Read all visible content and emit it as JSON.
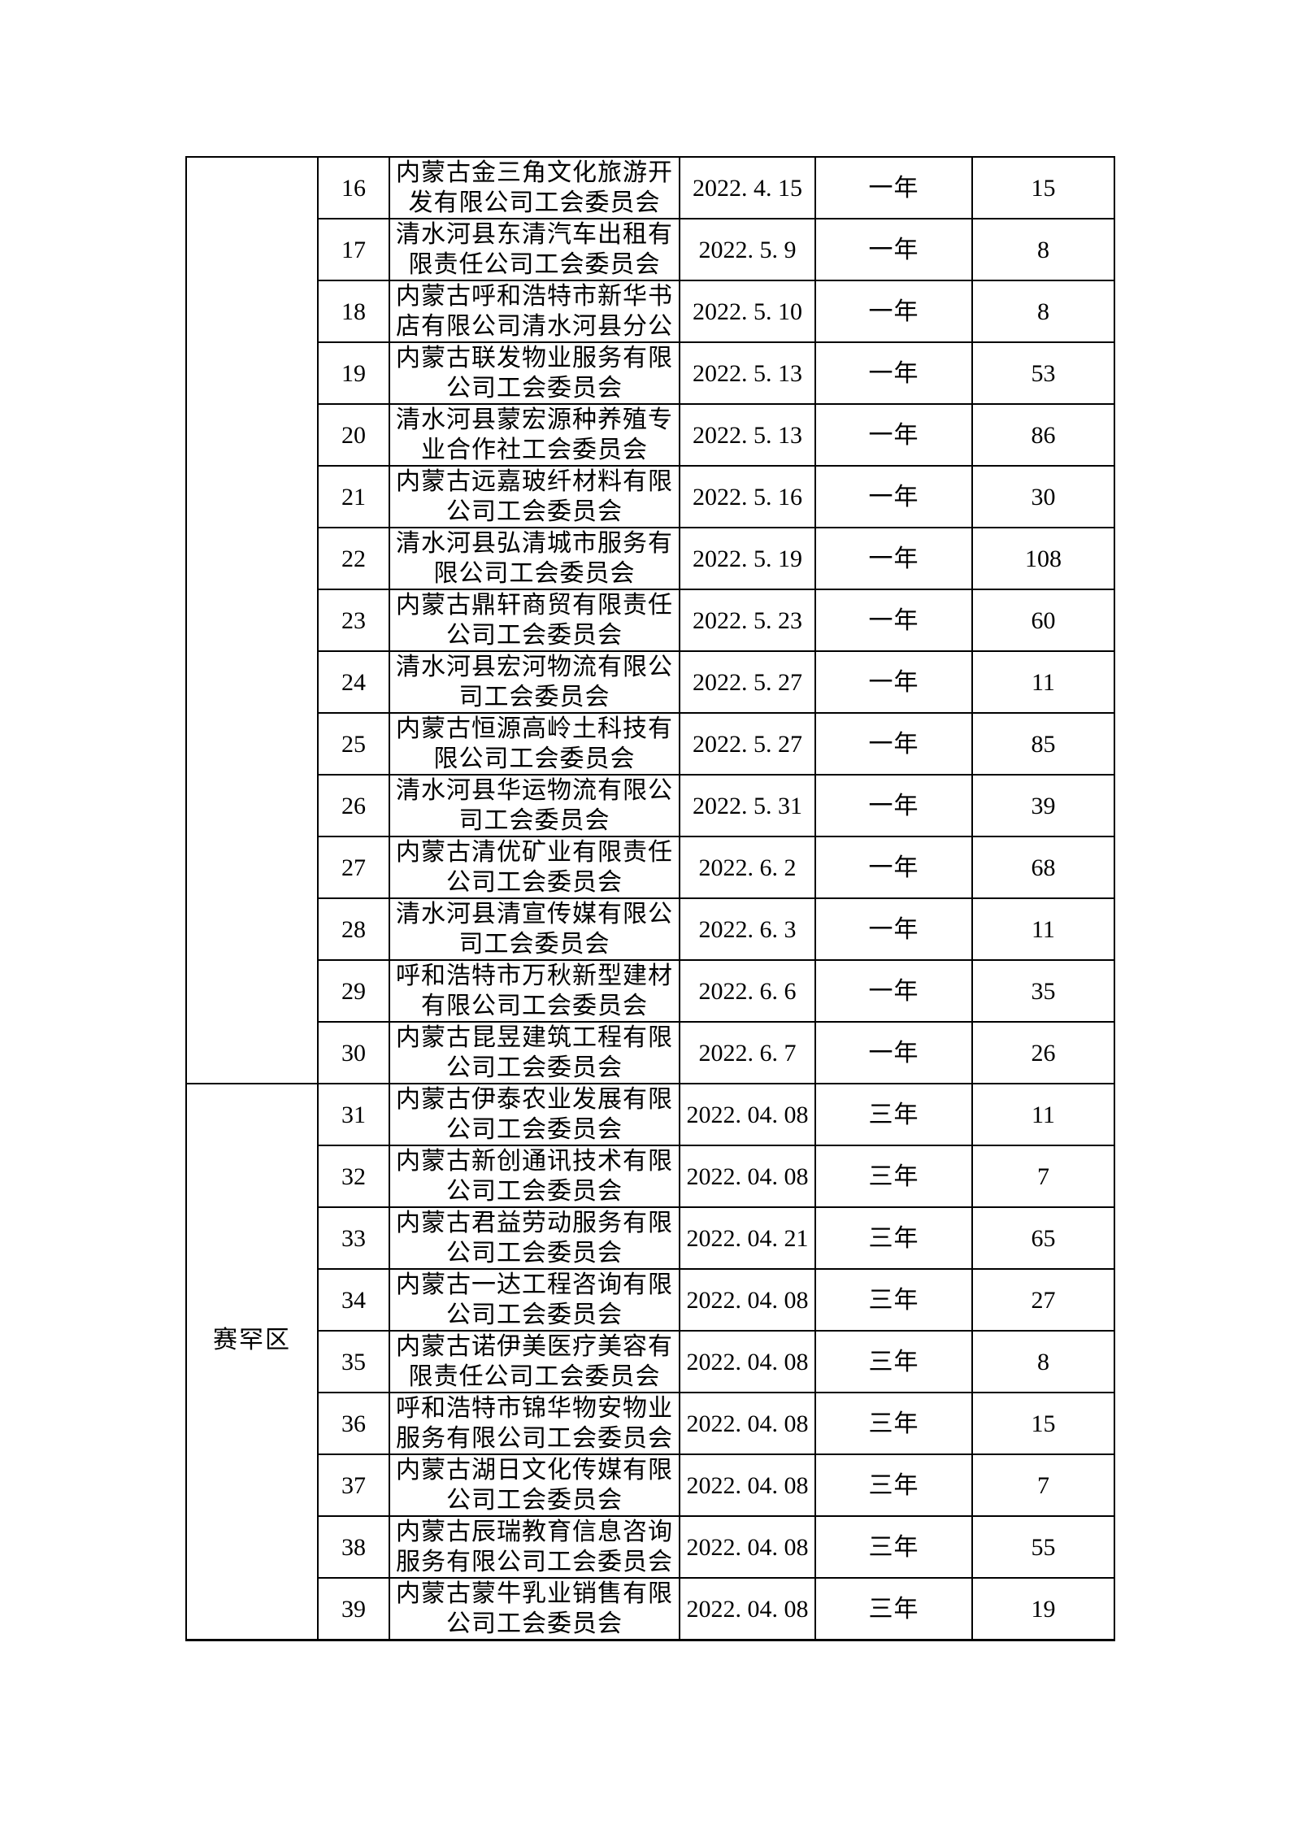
{
  "page_background": "#ffffff",
  "table": {
    "border_color": "#000000",
    "groups": [
      {
        "region": "",
        "rows": [
          {
            "no": "16",
            "name": "内蒙古金三角文化旅游开发有限公司工会委员会",
            "date": "2022. 4. 15",
            "term": "一年",
            "count": "15"
          },
          {
            "no": "17",
            "name": "清水河县东清汽车出租有限责任公司工会委员会",
            "date": "2022. 5. 9",
            "term": "一年",
            "count": "8"
          },
          {
            "no": "18",
            "name": "内蒙古呼和浩特市新华书店有限公司清水河县分公",
            "date": "2022. 5. 10",
            "term": "一年",
            "count": "8"
          },
          {
            "no": "19",
            "name": "内蒙古联发物业服务有限公司工会委员会",
            "date": "2022. 5. 13",
            "term": "一年",
            "count": "53"
          },
          {
            "no": "20",
            "name": "清水河县蒙宏源种养殖专业合作社工会委员会",
            "date": "2022. 5. 13",
            "term": "一年",
            "count": "86"
          },
          {
            "no": "21",
            "name": "内蒙古远嘉玻纤材料有限公司工会委员会",
            "date": "2022. 5. 16",
            "term": "一年",
            "count": "30"
          },
          {
            "no": "22",
            "name": "清水河县弘清城市服务有限公司工会委员会",
            "date": "2022. 5. 19",
            "term": "一年",
            "count": "108"
          },
          {
            "no": "23",
            "name": "内蒙古鼎轩商贸有限责任公司工会委员会",
            "date": "2022. 5. 23",
            "term": "一年",
            "count": "60"
          },
          {
            "no": "24",
            "name": "清水河县宏河物流有限公司工会委员会",
            "date": "2022. 5. 27",
            "term": "一年",
            "count": "11"
          },
          {
            "no": "25",
            "name": "内蒙古恒源高岭土科技有限公司工会委员会",
            "date": "2022. 5. 27",
            "term": "一年",
            "count": "85"
          },
          {
            "no": "26",
            "name": "清水河县华运物流有限公司工会委员会",
            "date": "2022. 5. 31",
            "term": "一年",
            "count": "39"
          },
          {
            "no": "27",
            "name": "内蒙古清优矿业有限责任公司工会委员会",
            "date": "2022. 6. 2",
            "term": "一年",
            "count": "68"
          },
          {
            "no": "28",
            "name": "清水河县清宣传媒有限公司工会委员会",
            "date": "2022. 6. 3",
            "term": "一年",
            "count": "11"
          },
          {
            "no": "29",
            "name": "呼和浩特市万秋新型建材有限公司工会委员会",
            "date": "2022. 6. 6",
            "term": "一年",
            "count": "35"
          },
          {
            "no": "30",
            "name": "内蒙古昆昱建筑工程有限公司工会委员会",
            "date": "2022. 6. 7",
            "term": "一年",
            "count": "26"
          }
        ]
      },
      {
        "region": "赛罕区",
        "rows": [
          {
            "no": "31",
            "name": "内蒙古伊泰农业发展有限公司工会委员会",
            "date": "2022. 04. 08",
            "term": "三年",
            "count": "11"
          },
          {
            "no": "32",
            "name": "内蒙古新创通讯技术有限公司工会委员会",
            "date": "2022. 04. 08",
            "term": "三年",
            "count": "7"
          },
          {
            "no": "33",
            "name": "内蒙古君益劳动服务有限公司工会委员会",
            "date": "2022. 04. 21",
            "term": "三年",
            "count": "65"
          },
          {
            "no": "34",
            "name": "内蒙古一达工程咨询有限公司工会委员会",
            "date": "2022. 04. 08",
            "term": "三年",
            "count": "27"
          },
          {
            "no": "35",
            "name": "内蒙古诺伊美医疗美容有限责任公司工会委员会",
            "date": "2022. 04. 08",
            "term": "三年",
            "count": "8"
          },
          {
            "no": "36",
            "name": "呼和浩特市锦华物安物业服务有限公司工会委员会",
            "date": "2022. 04. 08",
            "term": "三年",
            "count": "15"
          },
          {
            "no": "37",
            "name": "内蒙古湖日文化传媒有限公司工会委员会",
            "date": "2022. 04. 08",
            "term": "三年",
            "count": "7"
          },
          {
            "no": "38",
            "name": "内蒙古辰瑞教育信息咨询服务有限公司工会委员会",
            "date": "2022. 04. 08",
            "term": "三年",
            "count": "55"
          },
          {
            "no": "39",
            "name": "内蒙古蒙牛乳业销售有限公司工会委员会",
            "date": "2022. 04. 08",
            "term": "三年",
            "count": "19"
          }
        ]
      }
    ]
  }
}
